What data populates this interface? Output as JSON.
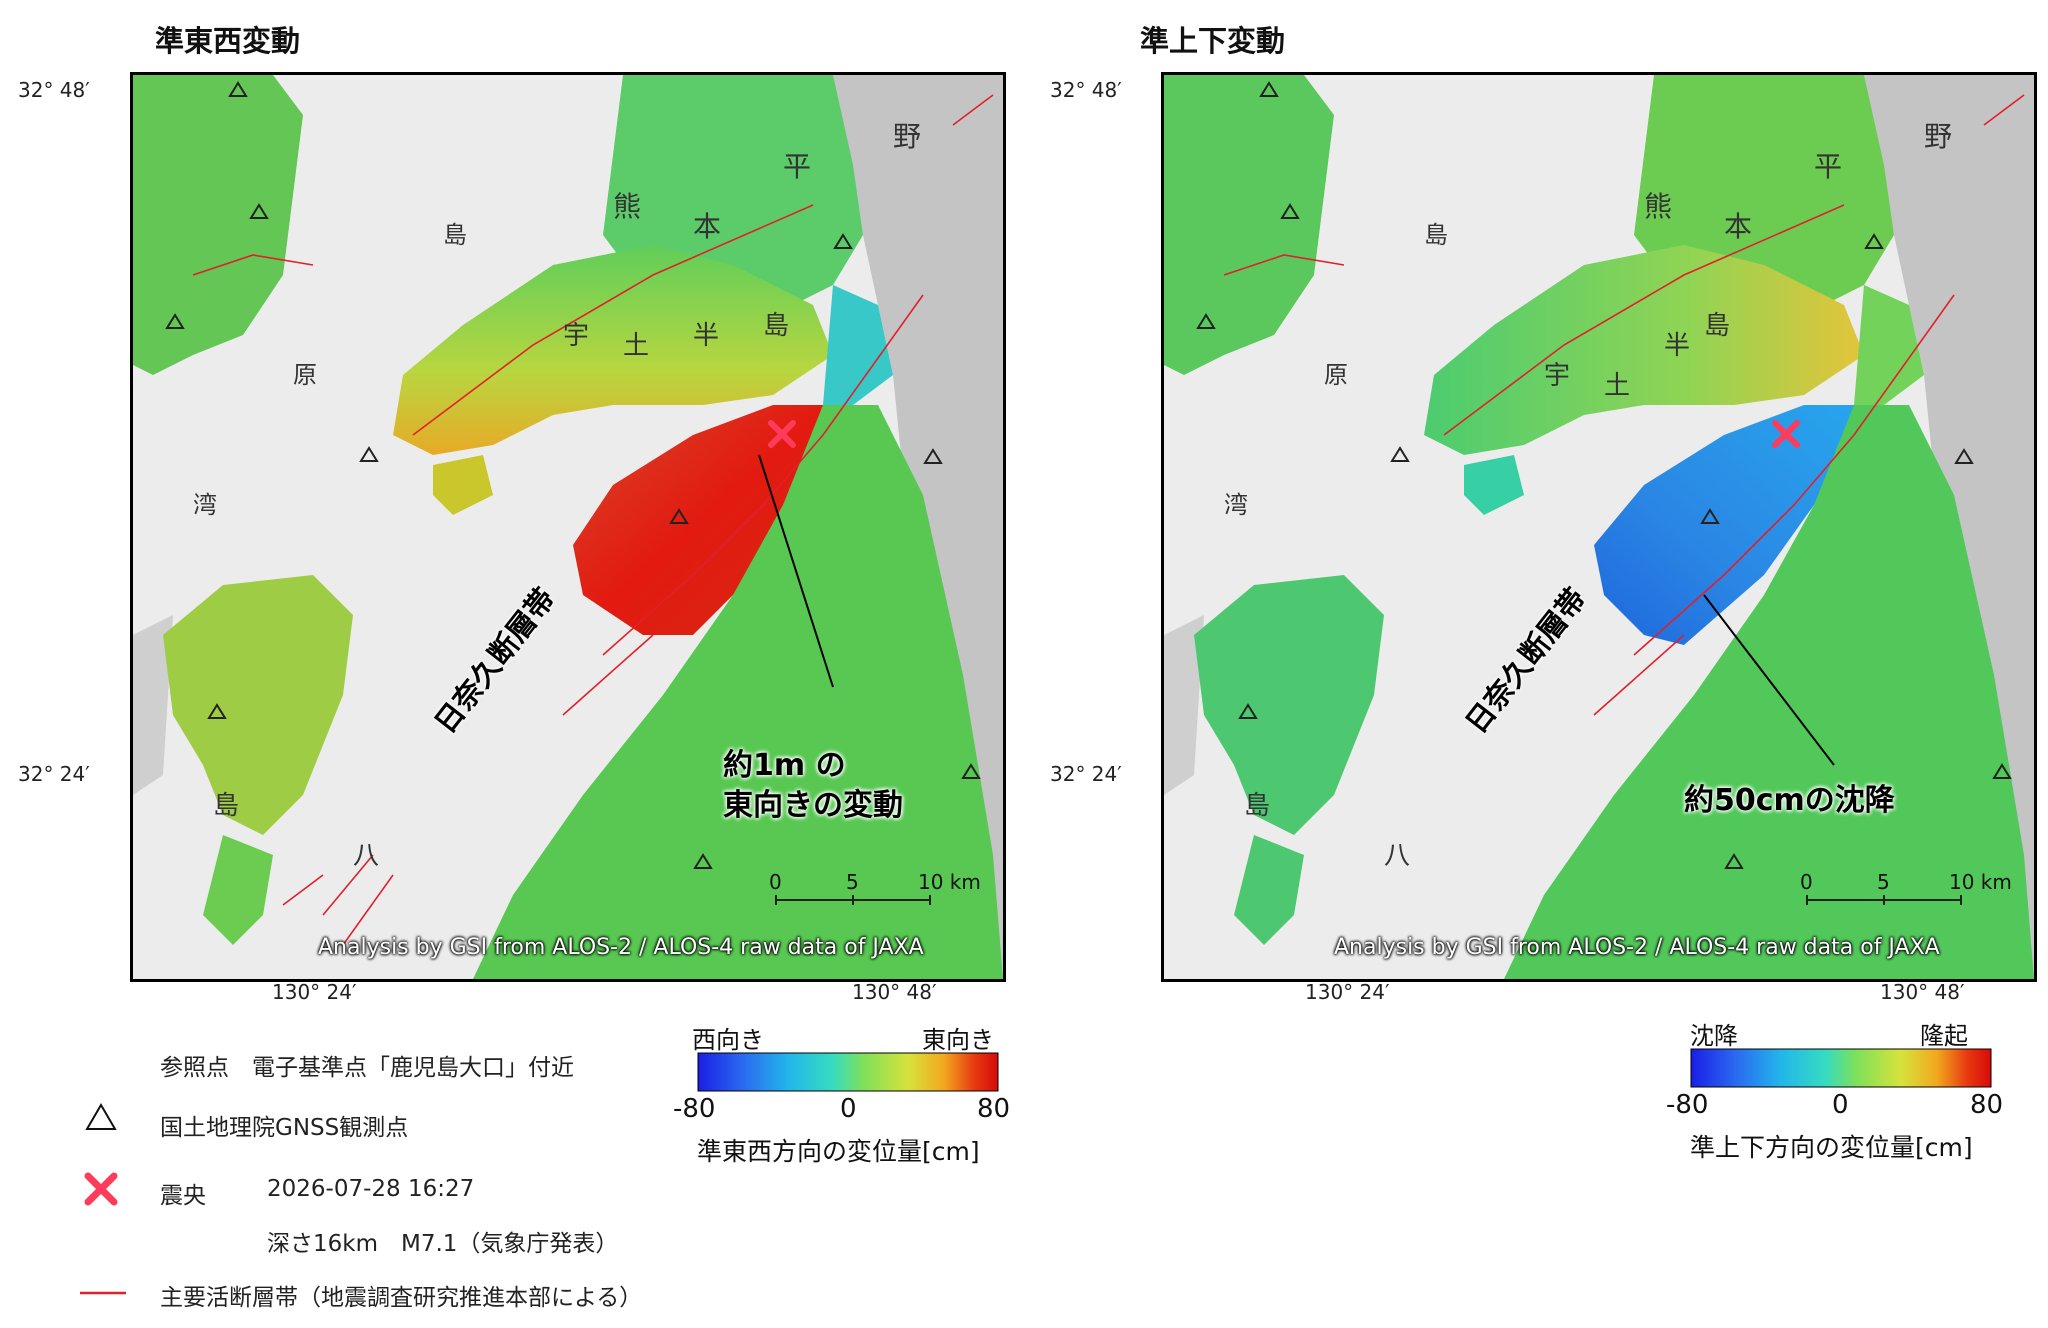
{
  "panels": [
    {
      "title": "準東西変動",
      "fault_label": "日奈久断層帯",
      "annotation": [
        "約1m の",
        "東向きの変動"
      ],
      "colorbar": {
        "left": "西向き",
        "right": "東向き",
        "min": "-80",
        "mid": "0",
        "max": "80",
        "label": "準東西方向の変位量[cm]"
      }
    },
    {
      "title": "準上下変動",
      "fault_label": "日奈久断層帯",
      "annotation": [
        "約50cmの沈降"
      ],
      "colorbar": {
        "left": "沈降",
        "right": "隆起",
        "min": "-80",
        "mid": "0",
        "max": "80",
        "label": "準上下方向の変位量[cm]"
      }
    }
  ],
  "coords": {
    "lat_top": "32° 48′",
    "lat_bottom": "32° 24′",
    "lon_left": "130° 24′",
    "lon_right": "130° 48′"
  },
  "scale": {
    "t0": "0",
    "t5": "5",
    "t10": "10 km"
  },
  "credit": "Analysis by GSI from ALOS-2 / ALOS-4 raw data of JAXA",
  "place_labels": {
    "kumamoto": [
      "熊",
      "本",
      "平",
      "野"
    ],
    "uto": [
      "宇",
      "土",
      "半",
      "島"
    ],
    "shimabara": [
      "原",
      "湾"
    ],
    "shima": "島",
    "ya": "八"
  },
  "legend": {
    "reference": "参照点　電子基準点「鹿児島大口」付近",
    "gnss": "国土地理院GNSS観測点",
    "epicenter_label": "震央",
    "epicenter_time": "2026-07-28 16:27",
    "epicenter_detail": "深さ16km　M7.1（気象庁発表）",
    "fault": "主要活断層帯（地震調査研究推進本部による）"
  },
  "colors": {
    "scale": [
      "#1a1ee6",
      "#2a6af0",
      "#22b6ea",
      "#36dcc0",
      "#7ee05a",
      "#d6e23c",
      "#f2a81e",
      "#e83a10",
      "#d60a0a"
    ],
    "fault": "#e0202a",
    "epicenter": "#ff3b5c"
  }
}
